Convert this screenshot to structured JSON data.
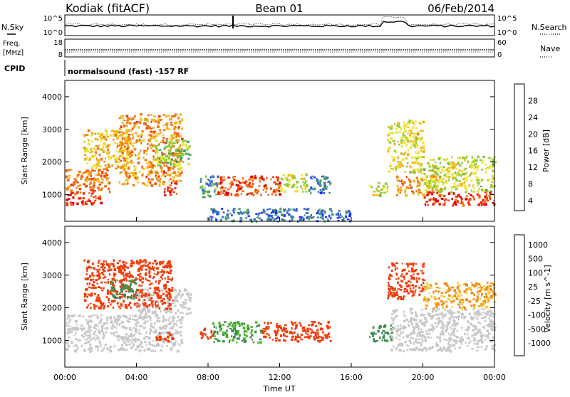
{
  "header": {
    "station": "Kodiak (fitACF)",
    "beam": "Beam 01",
    "date": "06/Feb/2014"
  },
  "noise_panel": {
    "left_label": "N.Sky",
    "right_label": "N.Search",
    "left_ticks": [
      "10^5",
      "10^0"
    ],
    "right_ticks": [
      "10^5",
      "10^0"
    ]
  },
  "freq_panel": {
    "label_line1": "Freq.",
    "label_line2": "[MHz]",
    "left_ticks": [
      "18",
      "8"
    ],
    "right_label": "Nave",
    "right_ticks": [
      "60",
      "0"
    ]
  },
  "cpid": {
    "label": "CPID",
    "value": "normalsound (fast) -157 RF"
  },
  "colors": {
    "power_scale": [
      "#1e32ff",
      "#3c6ec8",
      "#46a064",
      "#8cc83c",
      "#e6e632",
      "#f0b41e",
      "#f07814",
      "#f03c0a",
      "#e60000"
    ],
    "velocity_scale": [
      "#dc0000",
      "#f03c0a",
      "#f08c14",
      "#f0c83c",
      "#c8c8c8",
      "#c8c8c8",
      "#50b428",
      "#3c8c50",
      "#326eb4",
      "#1e32c8"
    ],
    "ground_scatter": "#c8c8c8"
  },
  "chart_data": [
    {
      "type": "heatmap",
      "name": "power",
      "ylabel": "Slant Range [km]",
      "colorbar_label": "Power [dB]",
      "colorbar_ticks": [
        "28",
        "24",
        "20",
        "16",
        "12",
        "8",
        "4"
      ],
      "x_ticks": [
        "00:00",
        "04:00",
        "08:00",
        "12:00",
        "16:00",
        "20:00",
        "00:00"
      ],
      "y_ticks": [
        "1000",
        "2000",
        "3000",
        "4000"
      ],
      "ylim": [
        180,
        4500
      ],
      "xlim_hours": [
        0,
        24
      ],
      "regions": [
        {
          "t0": 0.0,
          "t1": 2.0,
          "r0": 700,
          "r1": 1100,
          "power": 26
        },
        {
          "t0": 0.0,
          "t1": 2.5,
          "r0": 1100,
          "r1": 1800,
          "power": 22
        },
        {
          "t0": 1.0,
          "t1": 3.5,
          "r0": 1800,
          "r1": 3000,
          "power": 18
        },
        {
          "t0": 3.0,
          "t1": 6.5,
          "r0": 1300,
          "r1": 3500,
          "power": 20
        },
        {
          "t0": 5.0,
          "t1": 7.0,
          "r0": 1900,
          "r1": 2700,
          "power": 12
        },
        {
          "t0": 5.5,
          "t1": 6.2,
          "r0": 1000,
          "r1": 1400,
          "power": 26
        },
        {
          "t0": 7.5,
          "t1": 8.5,
          "r0": 900,
          "r1": 1600,
          "power": 8
        },
        {
          "t0": 8.5,
          "t1": 12.0,
          "r0": 1000,
          "r1": 1600,
          "power": 24
        },
        {
          "t0": 12.0,
          "t1": 13.5,
          "r0": 1100,
          "r1": 1700,
          "power": 14
        },
        {
          "t0": 13.5,
          "t1": 14.8,
          "r0": 1000,
          "r1": 1600,
          "power": 6
        },
        {
          "t0": 8.0,
          "t1": 16.0,
          "r0": 200,
          "r1": 600,
          "power": 6
        },
        {
          "t0": 17.0,
          "t1": 18.0,
          "r0": 1000,
          "r1": 1400,
          "power": 14
        },
        {
          "t0": 18.0,
          "t1": 20.0,
          "r0": 1700,
          "r1": 3300,
          "power": 16
        },
        {
          "t0": 18.5,
          "t1": 21.0,
          "r0": 1000,
          "r1": 1600,
          "power": 20
        },
        {
          "t0": 20.0,
          "t1": 24.0,
          "r0": 700,
          "r1": 1100,
          "power": 26
        },
        {
          "t0": 20.0,
          "t1": 24.0,
          "r0": 1100,
          "r1": 2200,
          "power": 14
        }
      ]
    },
    {
      "type": "heatmap",
      "name": "velocity",
      "ylabel": "Slant Range [km]",
      "colorbar_label": "Velocity [m s^-1]",
      "colorbar_ticks": [
        "1000",
        "500",
        "100",
        "25",
        "-25",
        "-100",
        "-500",
        "-1000"
      ],
      "x_ticks": [
        "00:00",
        "04:00",
        "08:00",
        "12:00",
        "16:00",
        "20:00",
        "00:00"
      ],
      "xlabel": "Time UT",
      "y_ticks": [
        "1000",
        "2000",
        "3000",
        "4000"
      ],
      "ylim": [
        180,
        4500
      ],
      "xlim_hours": [
        0,
        24
      ],
      "regions": [
        {
          "t0": 0.0,
          "t1": 6.5,
          "r0": 700,
          "r1": 1800,
          "velocity": 0,
          "ground": true
        },
        {
          "t0": 4.0,
          "t1": 7.0,
          "r0": 1800,
          "r1": 2600,
          "velocity": 0,
          "ground": true
        },
        {
          "t0": 1.0,
          "t1": 6.0,
          "r0": 2000,
          "r1": 3500,
          "velocity": -150
        },
        {
          "t0": 2.5,
          "t1": 4.0,
          "r0": 2300,
          "r1": 2900,
          "velocity": 150
        },
        {
          "t0": 5.0,
          "t1": 6.0,
          "r0": 1000,
          "r1": 1300,
          "velocity": -300
        },
        {
          "t0": 7.5,
          "t1": 8.2,
          "r0": 1000,
          "r1": 1400,
          "velocity": -300
        },
        {
          "t0": 8.2,
          "t1": 11.0,
          "r0": 950,
          "r1": 1600,
          "velocity": 100
        },
        {
          "t0": 11.0,
          "t1": 14.8,
          "r0": 1000,
          "r1": 1600,
          "velocity": -300
        },
        {
          "t0": 17.0,
          "t1": 18.3,
          "r0": 1000,
          "r1": 1500,
          "velocity": 150
        },
        {
          "t0": 18.0,
          "t1": 20.0,
          "r0": 2300,
          "r1": 3400,
          "velocity": -150
        },
        {
          "t0": 18.2,
          "t1": 24.0,
          "r0": 700,
          "r1": 2000,
          "velocity": 0,
          "ground": true
        },
        {
          "t0": 20.0,
          "t1": 24.0,
          "r0": 2000,
          "r1": 2800,
          "velocity": -60
        }
      ]
    }
  ]
}
